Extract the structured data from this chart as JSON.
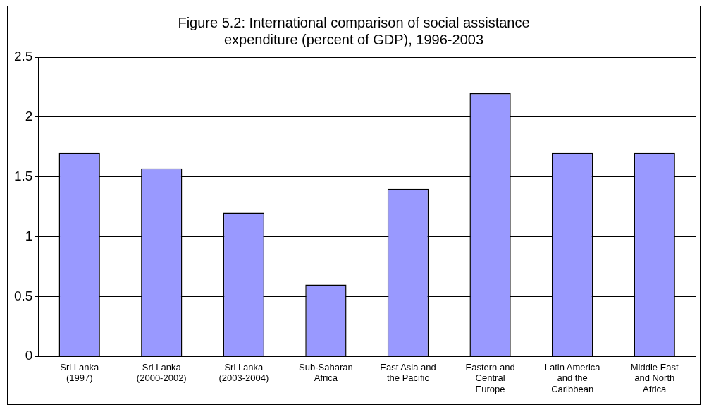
{
  "chart_data": {
    "type": "bar",
    "title": "Figure 5.2: International comparison of social assistance expenditure (percent of GDP), 1996-2003",
    "categories": [
      "Sri Lanka (1997)",
      "Sri Lanka (2000-2002)",
      "Sri Lanka (2003-2004)",
      "Sub-Saharan Africa",
      "East Asia and the Pacific",
      "Eastern and Central Europe",
      "Latin America and the Caribbean",
      "Middle East and North Africa"
    ],
    "values": [
      1.7,
      1.57,
      1.2,
      0.6,
      1.4,
      2.2,
      1.7,
      1.7
    ],
    "color": "#9999ff",
    "ylim": [
      0,
      2.5
    ],
    "yticks": [
      0,
      0.5,
      1,
      1.5,
      2,
      2.5
    ],
    "grid": "y",
    "legend": false
  }
}
